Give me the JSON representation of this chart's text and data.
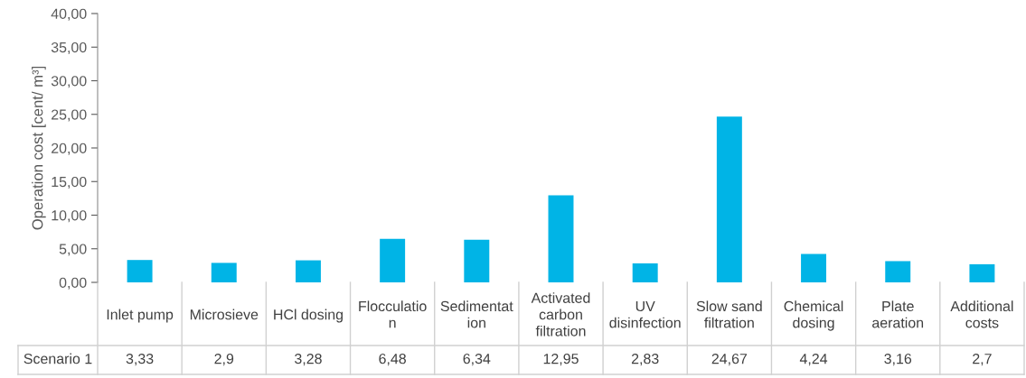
{
  "chart_data": {
    "type": "bar",
    "ylabel": "Operation cost [cent/ m³]",
    "categories": [
      "Inlet pump",
      "Microsieve",
      "HCl dosing",
      "Flocculatio\nn",
      "Sedimentat\nion",
      "Activated\ncarbon\nfiltration",
      "UV\ndisinfection",
      "Slow sand\nfiltration",
      "Chemical\ndosing",
      "Plate\naeration",
      "Additional\ncosts"
    ],
    "series": [
      {
        "name": "Scenario 1",
        "color": "#00b4e6",
        "values": [
          3.33,
          2.9,
          3.28,
          6.48,
          6.34,
          12.95,
          2.83,
          24.67,
          4.24,
          3.16,
          2.7
        ],
        "value_labels": [
          "3,33",
          "2,9",
          "3,28",
          "6,48",
          "6,34",
          "12,95",
          "2,83",
          "24,67",
          "4,24",
          "3,16",
          "2,7"
        ]
      }
    ],
    "ylim": [
      0,
      40
    ],
    "yticks": [
      {
        "value": 0,
        "label": "0,00"
      },
      {
        "value": 5,
        "label": "5,00"
      },
      {
        "value": 10,
        "label": "10,00"
      },
      {
        "value": 15,
        "label": "15,00"
      },
      {
        "value": 20,
        "label": "20,00"
      },
      {
        "value": 25,
        "label": "25,00"
      },
      {
        "value": 30,
        "label": "30,00"
      },
      {
        "value": 35,
        "label": "35,00"
      },
      {
        "value": 40,
        "label": "40,00"
      }
    ],
    "grid": false,
    "legend": false
  }
}
